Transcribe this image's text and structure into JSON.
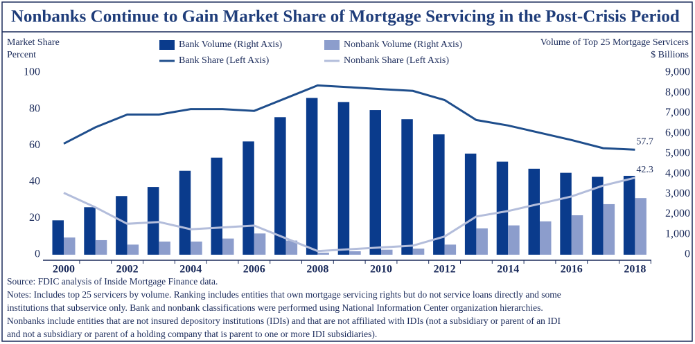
{
  "chart_data": {
    "type": "bar",
    "title": "Nonbanks Continue to Gain Market Share of Mortgage Servicing in the Post-Crisis Period",
    "y_label": [
      "Market Share",
      "Percent"
    ],
    "y2_label": [
      "Volume of Top 25 Mortgage Servicers",
      "$ Billions"
    ],
    "categories": [
      "2000",
      null,
      "2002",
      null,
      "2004",
      null,
      "2006",
      null,
      "2008",
      null,
      "2010",
      null,
      "2012",
      null,
      "2014",
      null,
      "2016",
      null,
      "2018"
    ],
    "ylim": [
      0,
      100
    ],
    "yticks": [
      0,
      20,
      40,
      60,
      80,
      100
    ],
    "y2lim": [
      0,
      9000
    ],
    "y2ticks": [
      0,
      {
        "value": 1000,
        "label": "1,000"
      },
      {
        "value": 2000,
        "label": "2,000"
      },
      {
        "value": 3000,
        "label": "3,000"
      },
      {
        "value": 4000,
        "label": "4,000"
      },
      {
        "value": 5000,
        "label": "5,000"
      },
      {
        "value": 6000,
        "label": "6,000"
      },
      {
        "value": 7000,
        "label": "7,000"
      },
      {
        "value": 8000,
        "label": "8,000"
      },
      {
        "value": 9000,
        "label": "9,000"
      }
    ],
    "series": [
      {
        "name": "Bank Volume (Right Axis)",
        "type": "bar",
        "axis": "y2",
        "color": "#0a3b8c",
        "values": [
          1700,
          2350,
          2900,
          3350,
          4150,
          4800,
          5600,
          6800,
          7750,
          7550,
          7150,
          6700,
          5950,
          5000,
          4600,
          4250,
          4050,
          3850,
          3900
        ]
      },
      {
        "name": "Nonbank Volume (Right Axis)",
        "type": "bar",
        "axis": "y2",
        "color": "#8c9dcc",
        "values": [
          850,
          720,
          500,
          650,
          650,
          800,
          1050,
          700,
          100,
          170,
          250,
          300,
          500,
          1300,
          1450,
          1650,
          1950,
          2500,
          2800
        ]
      },
      {
        "name": "Bank Share (Left Axis)",
        "type": "line",
        "color": "#1f4e8c",
        "values": [
          61,
          70,
          77,
          77,
          80,
          80,
          79,
          86,
          93,
          92,
          91,
          90,
          85,
          74,
          71,
          67,
          63,
          58.5,
          57.7
        ]
      },
      {
        "name": "Nonbank Share (Left Axis)",
        "type": "line",
        "color": "#b3bddb",
        "values": [
          34,
          26,
          17,
          18,
          14,
          15,
          16,
          9,
          2,
          3,
          4,
          5,
          10,
          21,
          24,
          28,
          32,
          38,
          42.3
        ]
      }
    ],
    "source": "Source: FDIC analysis of Inside Mortgage Finance data.",
    "notes": [
      "Notes: Includes top 25 servicers by volume. Ranking includes entities that own mortgage servicing rights but do not service loans directly and some",
      "institutions that subservice only. Bank and nonbank classifications were performed using National Information Center organization hierarchies.",
      "Nonbanks include entities that are not insured depository institutions (IDIs) and that are not affiliated with IDIs (not a subsidiary or parent of an IDI",
      "and not a subsidiary or parent of a holding company that is parent to one or more IDI subsidiaries)."
    ]
  }
}
